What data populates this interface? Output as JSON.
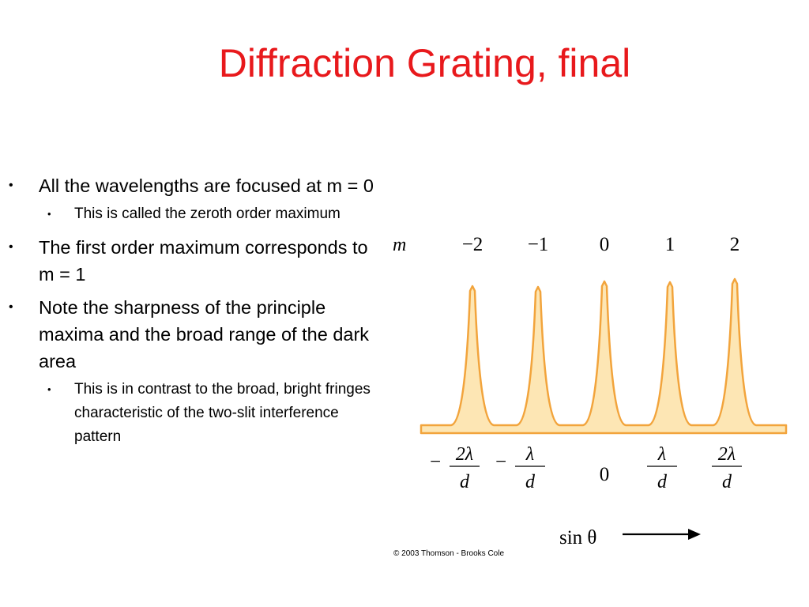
{
  "slide": {
    "title": "Diffraction Grating, final",
    "title_color": "#e8191c",
    "bullets": [
      {
        "text": "All the wavelengths are focused at m = 0",
        "sub": [
          "This is called the zeroth order maximum"
        ]
      },
      {
        "text": "The first order maximum corresponds to m = 1",
        "sub": []
      },
      {
        "text": "Note the sharpness of the principle maxima and the broad range of the dark area",
        "sub": [
          "This is in contrast to the broad, bright fringes characteristic of the two-slit interference pattern"
        ]
      }
    ]
  },
  "figure": {
    "m_label": "m",
    "orders": [
      "−2",
      "−1",
      "0",
      "1",
      "2"
    ],
    "positions": [
      {
        "sign": "−",
        "num": "2λ",
        "den": "d"
      },
      {
        "sign": "−",
        "num": "λ",
        "den": "d"
      },
      {
        "sign": "",
        "num": "0",
        "den": ""
      },
      {
        "sign": "",
        "num": "λ",
        "den": "d"
      },
      {
        "sign": "",
        "num": "2λ",
        "den": "d"
      }
    ],
    "axis_label": "sin θ",
    "copyright": "© 2003 Thomson - Brooks Cole",
    "fill_color": "#fde6b4",
    "stroke_color": "#f2a43c"
  }
}
